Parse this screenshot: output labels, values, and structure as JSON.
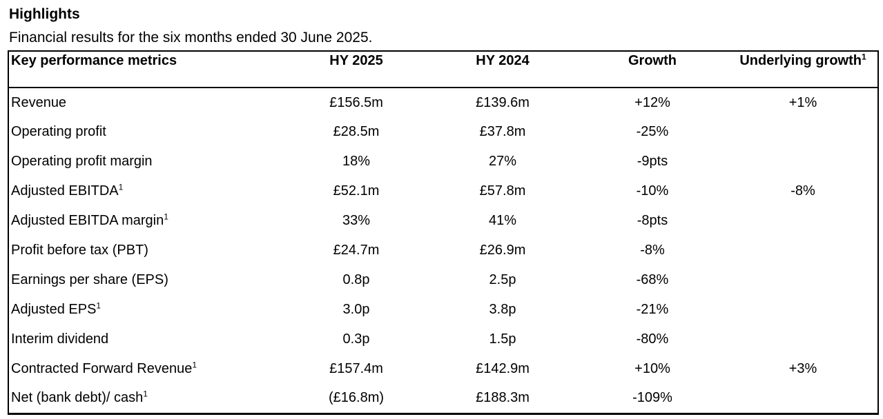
{
  "page": {
    "title": "Highlights",
    "subtitle": "Financial results for the six months ended 30 June 2025."
  },
  "colors": {
    "text": "#000000",
    "border": "#000000",
    "background": "#ffffff"
  },
  "table": {
    "columns": [
      {
        "label": "Key performance metrics",
        "sup": ""
      },
      {
        "label": "HY 2025",
        "sup": ""
      },
      {
        "label": "HY 2024",
        "sup": ""
      },
      {
        "label": "Growth",
        "sup": ""
      },
      {
        "label": "Underlying growth",
        "sup": "1"
      }
    ],
    "rows": [
      {
        "metric": "Revenue",
        "sup": "",
        "hy2025": "£156.5m",
        "hy2024": "£139.6m",
        "growth": "+12%",
        "underlying": "+1%"
      },
      {
        "metric": "Operating profit",
        "sup": "",
        "hy2025": "£28.5m",
        "hy2024": "£37.8m",
        "growth": "-25%",
        "underlying": ""
      },
      {
        "metric": "Operating profit margin",
        "sup": "",
        "hy2025": "18%",
        "hy2024": "27%",
        "growth": "-9pts",
        "underlying": ""
      },
      {
        "metric": "Adjusted EBITDA",
        "sup": "1",
        "hy2025": "£52.1m",
        "hy2024": "£57.8m",
        "growth": "-10%",
        "underlying": "-8%"
      },
      {
        "metric": "Adjusted EBITDA margin",
        "sup": "1",
        "hy2025": "33%",
        "hy2024": "41%",
        "growth": "-8pts",
        "underlying": ""
      },
      {
        "metric": "Profit before tax (PBT)",
        "sup": "",
        "hy2025": "£24.7m",
        "hy2024": "£26.9m",
        "growth": "-8%",
        "underlying": ""
      },
      {
        "metric": "Earnings per share (EPS)",
        "sup": "",
        "hy2025": "0.8p",
        "hy2024": "2.5p",
        "growth": "-68%",
        "underlying": ""
      },
      {
        "metric": "Adjusted EPS",
        "sup": "1",
        "hy2025": "3.0p",
        "hy2024": "3.8p",
        "growth": "-21%",
        "underlying": ""
      },
      {
        "metric": "Interim dividend",
        "sup": "",
        "hy2025": "0.3p",
        "hy2024": "1.5p",
        "growth": "-80%",
        "underlying": ""
      },
      {
        "metric": "Contracted Forward Revenue",
        "sup": "1",
        "hy2025": "£157.4m",
        "hy2024": "£142.9m",
        "growth": "+10%",
        "underlying": "+3%"
      },
      {
        "metric": "Net (bank debt)/ cash",
        "sup": "1",
        "hy2025": "(£16.8m)",
        "hy2024": "£188.3m",
        "growth": "-109%",
        "underlying": ""
      }
    ]
  }
}
